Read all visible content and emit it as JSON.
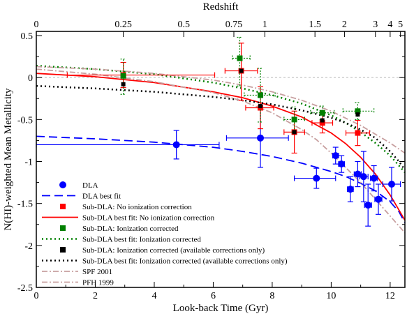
{
  "chart_data": {
    "type": "scatter",
    "title": "",
    "xlabel": "Look-back Time (Gyr)",
    "ylabel": "N(HI)-weighted Mean Metallicity",
    "top_axis_label": "Redshift",
    "xlim": [
      0,
      12.5
    ],
    "ylim": [
      -2.5,
      0.55
    ],
    "x_ticks": [
      "0",
      "2",
      "4",
      "6",
      "8",
      "10",
      "12"
    ],
    "x_tick_values": [
      0,
      2,
      4,
      6,
      8,
      10,
      12
    ],
    "y_ticks": [
      "0.5",
      "0",
      "-0.5",
      "-1",
      "-1.5",
      "-2",
      "-2.5"
    ],
    "y_tick_values": [
      0.5,
      0,
      -0.5,
      -1,
      -1.5,
      -2,
      -2.5
    ],
    "top_ticks": [
      {
        "label": "0",
        "x": 0
      },
      {
        "label": "0.25",
        "x": 2.95
      },
      {
        "label": "0.5",
        "x": 5.0
      },
      {
        "label": "0.75",
        "x": 6.7
      },
      {
        "label": "1",
        "x": 7.75
      },
      {
        "label": "1.5",
        "x": 9.45
      },
      {
        "label": "2",
        "x": 10.45
      },
      {
        "label": "3",
        "x": 11.5
      },
      {
        "label": "4",
        "x": 12.0
      },
      {
        "label": "5",
        "x": 12.35
      }
    ],
    "colors": {
      "dla": "#0000ff",
      "subdla": "#ff0000",
      "ioncorr": "#008000",
      "avail": "#000000",
      "spf": "#c8a0a0",
      "zero_line": "#d0d0d0"
    },
    "series": [
      {
        "name": "DLA",
        "kind": "points",
        "marker": "circle",
        "color": "#0000ff",
        "points": [
          {
            "x": 4.75,
            "y": -0.8,
            "xerr": [
              4.75,
              1.45
            ],
            "yerr": [
              0.17,
              0.17
            ]
          },
          {
            "x": 7.6,
            "y": -0.72,
            "xerr": [
              1.15,
              0.95
            ],
            "yerr": [
              0.35,
              0.35
            ]
          },
          {
            "x": 9.5,
            "y": -1.2,
            "xerr": [
              0.75,
              0.65
            ],
            "yerr": [
              0.12,
              0.12
            ]
          },
          {
            "x": 10.15,
            "y": -0.93,
            "xerr": [
              0.1,
              0.1
            ],
            "yerr": [
              0.1,
              0.1
            ]
          },
          {
            "x": 10.35,
            "y": -1.03,
            "xerr": [
              0.1,
              0.1
            ],
            "yerr": [
              0.1,
              0.1
            ]
          },
          {
            "x": 10.65,
            "y": -1.33,
            "xerr": [
              0.1,
              0.1
            ],
            "yerr": [
              0.15,
              0.15
            ]
          },
          {
            "x": 10.9,
            "y": -1.15,
            "xerr": [
              0.12,
              0.12
            ],
            "yerr": [
              0.15,
              0.15
            ]
          },
          {
            "x": 11.1,
            "y": -1.18,
            "xerr": [
              0.15,
              0.15
            ],
            "yerr": [
              0.3,
              0.3
            ]
          },
          {
            "x": 11.25,
            "y": -1.52,
            "xerr": [
              0.12,
              0.12
            ],
            "yerr": [
              0.25,
              0.25
            ]
          },
          {
            "x": 11.45,
            "y": -1.2,
            "xerr": [
              0.12,
              0.12
            ],
            "yerr": [
              0.15,
              0.15
            ]
          },
          {
            "x": 11.6,
            "y": -1.45,
            "xerr": [
              0.12,
              0.12
            ],
            "yerr": [
              0.18,
              0.18
            ]
          },
          {
            "x": 12.05,
            "y": -1.27,
            "xerr": [
              0.3,
              0.3
            ],
            "yerr": [
              0.2,
              0.2
            ]
          }
        ]
      },
      {
        "name": "DLA best fit",
        "kind": "line",
        "dash": "12,6",
        "color": "#0000ff",
        "x": [
          0,
          2,
          4,
          6,
          7,
          8,
          9,
          10,
          10.5,
          11,
          11.5,
          12,
          12.3,
          12.5
        ],
        "y": [
          -0.7,
          -0.73,
          -0.77,
          -0.83,
          -0.88,
          -0.94,
          -1.02,
          -1.12,
          -1.18,
          -1.26,
          -1.35,
          -1.48,
          -1.6,
          -1.73
        ]
      },
      {
        "name": "Sub-DLA: No ionization correction",
        "kind": "points",
        "marker": "square",
        "color": "#ff0000",
        "points": [
          {
            "x": 2.95,
            "y": 0.03,
            "xerr": [
              1.9,
              3.1
            ],
            "yerr": [
              0.15,
              0.15
            ]
          },
          {
            "x": 6.95,
            "y": 0.08,
            "xerr": [
              0.55,
              0.55
            ],
            "yerr": [
              0.35,
              0.33
            ]
          },
          {
            "x": 7.6,
            "y": -0.36,
            "xerr": [
              0.5,
              0.45
            ],
            "yerr": [
              0.25,
              0.25
            ]
          },
          {
            "x": 8.75,
            "y": -0.65,
            "xerr": [
              0.35,
              0.35
            ],
            "yerr": [
              0.25,
              0.25
            ]
          },
          {
            "x": 9.7,
            "y": -0.54,
            "xerr": [
              0.35,
              0.35
            ],
            "yerr": [
              0.12,
              0.12
            ]
          },
          {
            "x": 10.9,
            "y": -0.66,
            "xerr": [
              0.4,
              0.4
            ],
            "yerr": [
              0.15,
              0.15
            ]
          }
        ]
      },
      {
        "name": "Sub-DLA best fit: No ionization correction",
        "kind": "line",
        "dash": "",
        "color": "#ff0000",
        "x": [
          0,
          2,
          4,
          6,
          7,
          8,
          9,
          10,
          10.5,
          11,
          11.5,
          12,
          12.3,
          12.5
        ],
        "y": [
          0.05,
          0.01,
          -0.06,
          -0.17,
          -0.24,
          -0.34,
          -0.47,
          -0.66,
          -0.79,
          -0.95,
          -1.15,
          -1.4,
          -1.58,
          -1.7
        ]
      },
      {
        "name": "Sub-DLA: Ionization corrected",
        "kind": "points",
        "marker": "square",
        "color": "#008000",
        "dotted_errors": true,
        "points": [
          {
            "x": 2.95,
            "y": 0.02,
            "xerr": [
              0,
              0
            ],
            "yerr": [
              0.22,
              0.2
            ]
          },
          {
            "x": 6.9,
            "y": 0.23,
            "xerr": [
              0.25,
              0.35
            ],
            "yerr": [
              0.33,
              0.25
            ]
          },
          {
            "x": 7.6,
            "y": -0.21,
            "xerr": [
              0.55,
              0.5
            ],
            "yerr": [
              0.32,
              0.32
            ]
          },
          {
            "x": 8.75,
            "y": -0.5,
            "xerr": [
              0.35,
              0.35
            ],
            "yerr": [
              0.15,
              0.15
            ]
          },
          {
            "x": 9.7,
            "y": -0.42,
            "xerr": [
              0.4,
              0.4
            ],
            "yerr": [
              0.08,
              0.08
            ]
          },
          {
            "x": 10.9,
            "y": -0.4,
            "xerr": [
              0.5,
              0.55
            ],
            "yerr": [
              0.1,
              0.1
            ]
          }
        ]
      },
      {
        "name": "Sub-DLA best fit: Ionization corrected",
        "kind": "line",
        "dash": "2,4",
        "color": "#008000",
        "x": [
          0,
          2,
          4,
          6,
          7,
          8,
          9,
          10,
          10.5,
          11,
          11.5,
          12,
          12.3,
          12.5
        ],
        "y": [
          0.14,
          0.1,
          0.04,
          -0.06,
          -0.13,
          -0.21,
          -0.31,
          -0.45,
          -0.54,
          -0.65,
          -0.78,
          -0.93,
          -1.05,
          -1.13
        ]
      },
      {
        "name": "Sub-DLA: Ionization corrected (available corrections only)",
        "kind": "points",
        "marker": "square",
        "color": "#000000",
        "points": [
          {
            "x": 2.95,
            "y": -0.08,
            "xerr": [
              0,
              0
            ],
            "yerr": [
              0,
              0
            ]
          },
          {
            "x": 6.95,
            "y": 0.08,
            "xerr": [
              0,
              0
            ],
            "yerr": [
              0,
              0
            ]
          },
          {
            "x": 7.6,
            "y": -0.34,
            "xerr": [
              0,
              0
            ],
            "yerr": [
              0,
              0
            ]
          },
          {
            "x": 8.75,
            "y": -0.65,
            "xerr": [
              0,
              0
            ],
            "yerr": [
              0,
              0
            ]
          },
          {
            "x": 9.7,
            "y": -0.51,
            "xerr": [
              0,
              0
            ],
            "yerr": [
              0,
              0
            ]
          },
          {
            "x": 10.9,
            "y": -0.44,
            "xerr": [
              0,
              0
            ],
            "yerr": [
              0,
              0
            ]
          }
        ]
      },
      {
        "name": "Sub-DLA best fit: Ionization corrected (available corrections only)",
        "kind": "line",
        "dash": "2,4",
        "color": "#000000",
        "x": [
          0,
          2,
          4,
          6,
          7,
          8,
          9,
          10,
          10.5,
          11,
          11.5,
          12,
          12.3,
          12.5
        ],
        "y": [
          -0.1,
          -0.13,
          -0.17,
          -0.23,
          -0.27,
          -0.32,
          -0.39,
          -0.48,
          -0.54,
          -0.62,
          -0.72,
          -0.88,
          -1.0,
          -1.1
        ]
      },
      {
        "name": "SPF 2001",
        "kind": "line",
        "dash": "8,3,2,3",
        "color": "#c8a0a0",
        "x": [
          0,
          2,
          4,
          6,
          7,
          8,
          9,
          10,
          11,
          12,
          12.5
        ],
        "y": [
          0.13,
          0.1,
          0.05,
          -0.03,
          -0.09,
          -0.17,
          -0.27,
          -0.4,
          -0.57,
          -0.78,
          -0.9
        ]
      },
      {
        "name": "PFH 1999",
        "kind": "line",
        "dash": "8,3,2,3",
        "color": "#c8a0a0",
        "x": [
          0,
          2,
          4,
          6,
          7,
          8,
          9,
          9.5,
          10,
          11,
          12,
          12.5
        ],
        "y": [
          0.1,
          0.04,
          -0.05,
          -0.18,
          -0.28,
          -0.42,
          -0.62,
          -0.74,
          -0.9,
          -1.25,
          -1.65,
          -1.85
        ]
      }
    ],
    "legend": {
      "position": "bottom-left",
      "entries": [
        {
          "label": "DLA",
          "series": 0
        },
        {
          "label": "DLA best fit",
          "series": 1
        },
        {
          "label": "Sub-DLA: No ionization correction",
          "series": 2
        },
        {
          "label": "Sub-DLA best fit: No ionization correction",
          "series": 3
        },
        {
          "label": "Sub-DLA: Ionization corrected",
          "series": 4
        },
        {
          "label": "Sub-DLA best fit: Ionization corrected",
          "series": 5
        },
        {
          "label": "Sub-DLA: Ionization corrected (available corrections only)",
          "series": 6
        },
        {
          "label": "Sub-DLA best fit: Ionization corrected (available corrections only)",
          "series": 7
        },
        {
          "label": "SPF 2001",
          "series": 8
        },
        {
          "label": "PFH 1999",
          "series": 9
        }
      ]
    }
  }
}
